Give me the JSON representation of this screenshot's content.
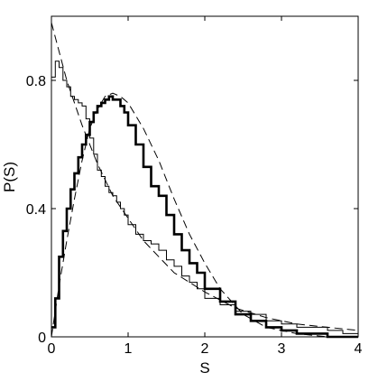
{
  "chart_data": {
    "type": "line",
    "xlabel": "S",
    "ylabel": "P(S)",
    "xlim": [
      0,
      4
    ],
    "ylim": [
      0,
      1.0
    ],
    "grid": false,
    "legend": "none",
    "x_ticks": [
      "0",
      "1",
      "2",
      "3",
      "4"
    ],
    "y_ticks": [
      {
        "value": 0,
        "label": "0"
      },
      {
        "value": 0.4,
        "label": "0.4"
      },
      {
        "value": 0.8,
        "label": "0.8"
      }
    ],
    "series": [
      {
        "style": "thin-step",
        "x": [
          0.0,
          0.05,
          0.1,
          0.15,
          0.2,
          0.25,
          0.3,
          0.35,
          0.4,
          0.45,
          0.5,
          0.55,
          0.6,
          0.65,
          0.7,
          0.75,
          0.8,
          0.85,
          0.9,
          0.95,
          1.0,
          1.1,
          1.2,
          1.3,
          1.4,
          1.5,
          1.6,
          1.7,
          1.8,
          1.9,
          2.0,
          2.2,
          2.4,
          2.6,
          2.8,
          3.0,
          3.2,
          3.4,
          3.6,
          3.8,
          4.0
        ],
        "y": [
          0.81,
          0.86,
          0.84,
          0.8,
          0.78,
          0.75,
          0.74,
          0.73,
          0.72,
          0.68,
          0.62,
          0.57,
          0.52,
          0.5,
          0.47,
          0.45,
          0.44,
          0.42,
          0.4,
          0.38,
          0.35,
          0.32,
          0.3,
          0.29,
          0.27,
          0.24,
          0.22,
          0.19,
          0.17,
          0.15,
          0.12,
          0.1,
          0.08,
          0.07,
          0.05,
          0.04,
          0.03,
          0.03,
          0.02,
          0.01,
          0.01
        ]
      },
      {
        "style": "thick-step",
        "x": [
          0.0,
          0.05,
          0.1,
          0.15,
          0.2,
          0.25,
          0.3,
          0.35,
          0.4,
          0.45,
          0.5,
          0.55,
          0.6,
          0.65,
          0.7,
          0.75,
          0.8,
          0.85,
          0.9,
          0.95,
          1.0,
          1.1,
          1.2,
          1.3,
          1.4,
          1.5,
          1.6,
          1.7,
          1.8,
          1.9,
          2.0,
          2.2,
          2.4,
          2.6,
          2.8,
          3.0,
          3.2,
          3.4,
          3.6,
          3.8,
          4.0
        ],
        "y": [
          0.03,
          0.12,
          0.25,
          0.33,
          0.4,
          0.46,
          0.51,
          0.56,
          0.6,
          0.63,
          0.67,
          0.7,
          0.72,
          0.73,
          0.74,
          0.75,
          0.74,
          0.74,
          0.72,
          0.7,
          0.66,
          0.6,
          0.53,
          0.47,
          0.44,
          0.38,
          0.32,
          0.27,
          0.23,
          0.2,
          0.15,
          0.11,
          0.07,
          0.05,
          0.03,
          0.02,
          0.01,
          0.01,
          0.0,
          0.0,
          0.0
        ]
      },
      {
        "style": "dashed-exponential",
        "x": [
          0.0,
          0.2,
          0.4,
          0.6,
          0.8,
          1.0,
          1.2,
          1.4,
          1.6,
          1.8,
          2.0,
          2.4,
          2.8,
          3.2,
          3.6,
          4.0
        ],
        "y": [
          0.98,
          0.8,
          0.66,
          0.54,
          0.44,
          0.37,
          0.3,
          0.25,
          0.2,
          0.17,
          0.14,
          0.09,
          0.06,
          0.04,
          0.03,
          0.02
        ]
      },
      {
        "style": "dashed-wigner",
        "x": [
          0.0,
          0.1,
          0.2,
          0.3,
          0.4,
          0.5,
          0.6,
          0.7,
          0.8,
          0.9,
          1.0,
          1.2,
          1.4,
          1.6,
          1.8,
          2.0,
          2.2,
          2.5,
          2.8,
          3.2,
          3.6,
          4.0
        ],
        "y": [
          0.0,
          0.16,
          0.3,
          0.43,
          0.55,
          0.65,
          0.71,
          0.75,
          0.76,
          0.75,
          0.73,
          0.65,
          0.55,
          0.43,
          0.32,
          0.23,
          0.15,
          0.07,
          0.03,
          0.01,
          0.0,
          0.0
        ]
      }
    ]
  }
}
